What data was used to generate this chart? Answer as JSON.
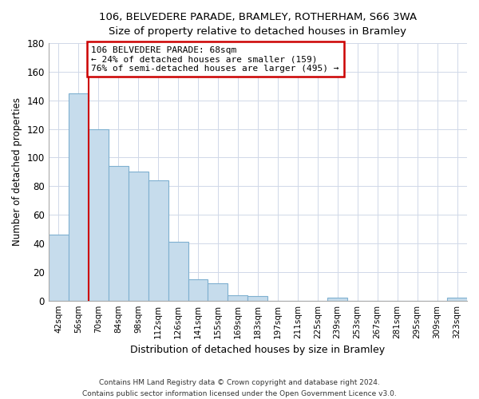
{
  "title1": "106, BELVEDERE PARADE, BRAMLEY, ROTHERHAM, S66 3WA",
  "title2": "Size of property relative to detached houses in Bramley",
  "xlabel": "Distribution of detached houses by size in Bramley",
  "ylabel": "Number of detached properties",
  "bin_labels": [
    "42sqm",
    "56sqm",
    "70sqm",
    "84sqm",
    "98sqm",
    "112sqm",
    "126sqm",
    "141sqm",
    "155sqm",
    "169sqm",
    "183sqm",
    "197sqm",
    "211sqm",
    "225sqm",
    "239sqm",
    "253sqm",
    "267sqm",
    "281sqm",
    "295sqm",
    "309sqm",
    "323sqm"
  ],
  "bar_heights": [
    46,
    145,
    120,
    94,
    90,
    84,
    41,
    15,
    12,
    4,
    3,
    0,
    0,
    0,
    2,
    0,
    0,
    0,
    0,
    0,
    2
  ],
  "bar_color": "#c6dcec",
  "bar_edge_color": "#7eb0d0",
  "property_line_bin_index": 2,
  "annotation_title": "106 BELVEDERE PARADE: 68sqm",
  "annotation_line1": "← 24% of detached houses are smaller (159)",
  "annotation_line2": "76% of semi-detached houses are larger (495) →",
  "annotation_box_color": "#ffffff",
  "annotation_box_edge": "#cc0000",
  "property_line_color": "#cc0000",
  "ylim": [
    0,
    180
  ],
  "yticks": [
    0,
    20,
    40,
    60,
    80,
    100,
    120,
    140,
    160,
    180
  ],
  "footnote1": "Contains HM Land Registry data © Crown copyright and database right 2024.",
  "footnote2": "Contains public sector information licensed under the Open Government Licence v3.0."
}
